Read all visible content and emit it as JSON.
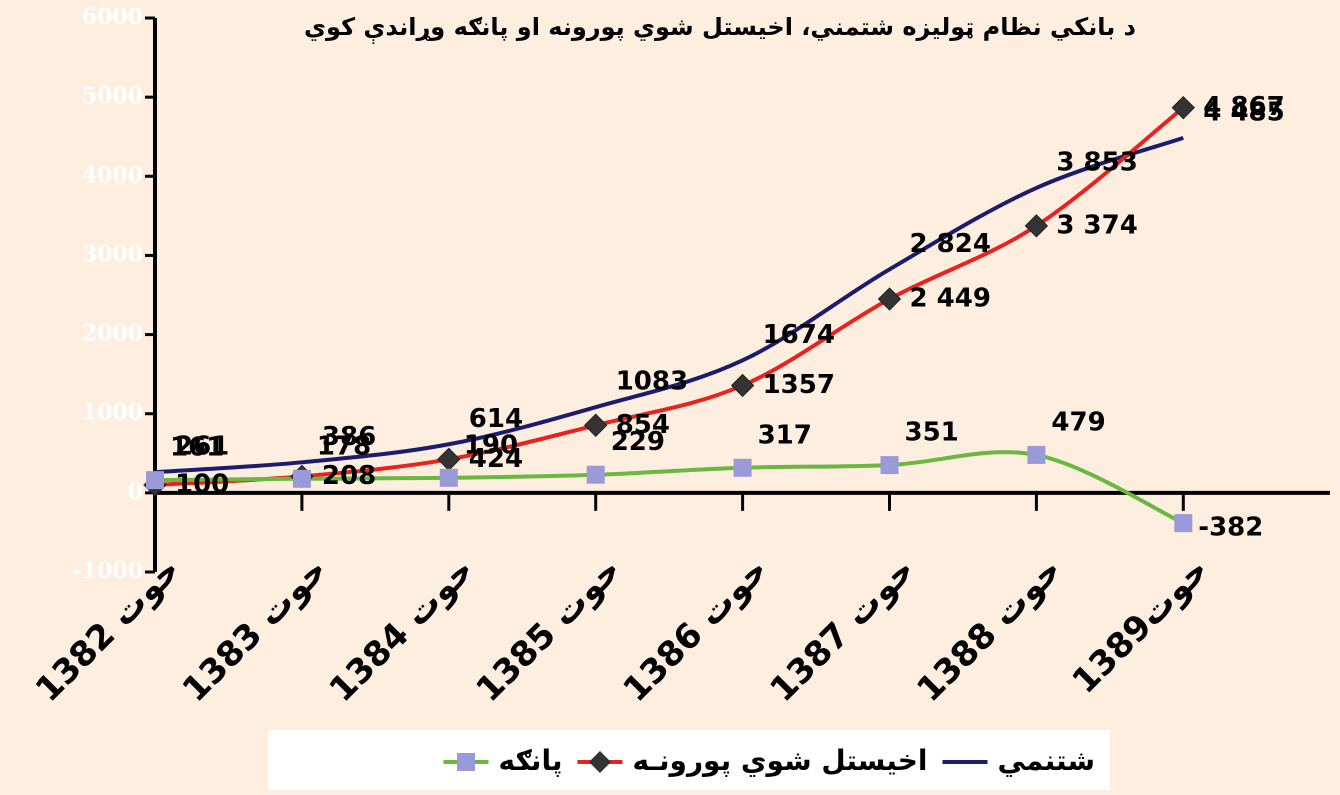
{
  "chart_data": {
    "type": "line",
    "title": "د بانکي نظام ټولیزه شتمني، اخیستل شوي پورونه او پانګه وړاندې کوي",
    "categories": [
      "حوت 1382",
      "حوت 1383",
      "حوت 1384",
      "حوت 1385",
      "حوت 1386",
      "حوت 1387",
      "حوت 1388",
      "1389حوت"
    ],
    "series": [
      {
        "name": "شتنمي",
        "color": "#1c1c6e",
        "values": [
          261,
          386,
          614,
          1083,
          1674,
          2824,
          3853,
          4485
        ],
        "value_labels": [
          "261",
          "386",
          "614",
          "1083",
          "1674",
          "2 824",
          "3 853",
          "4 485"
        ]
      },
      {
        "name": "اخيستل شوي پورونـه",
        "color": "#e8231f",
        "values": [
          100,
          208,
          424,
          854,
          1357,
          2449,
          3374,
          4867
        ],
        "value_labels": [
          "100",
          "208",
          "424",
          "854",
          "1357",
          "2 449",
          "3 374",
          "4 867"
        ]
      },
      {
        "name": "پانګه",
        "color": "#6ab83f",
        "values": [
          161,
          178,
          190,
          229,
          317,
          351,
          479,
          -382
        ],
        "value_labels": [
          "161",
          "178",
          "190",
          "229",
          "317",
          "351",
          "479",
          "-382"
        ]
      }
    ],
    "ylim": [
      -1000,
      6000
    ],
    "yticks": [
      -1000,
      0,
      1000,
      2000,
      3000,
      4000,
      5000,
      6000
    ],
    "legend": "bottom"
  }
}
